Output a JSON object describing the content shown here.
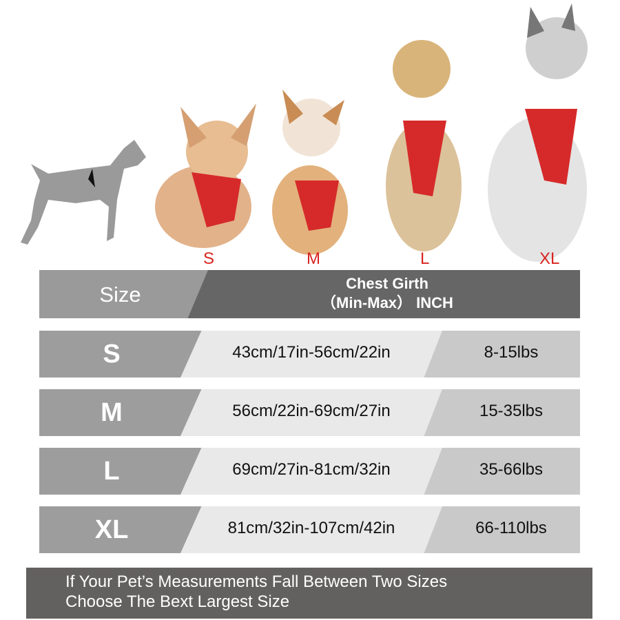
{
  "size_labels": [
    "S",
    "M",
    "L",
    "XL"
  ],
  "header": {
    "size": "Size",
    "girth_line1": "Chest Girth",
    "girth_line2": "（Min-Max） INCH"
  },
  "rows": [
    {
      "size": "S",
      "girth": "43cm/17in-56cm/22in",
      "weight": "8-15lbs"
    },
    {
      "size": "M",
      "girth": "56cm/22in-69cm/27in",
      "weight": "15-35lbs"
    },
    {
      "size": "L",
      "girth": "69cm/27in-81cm/32in",
      "weight": "35-66lbs"
    },
    {
      "size": "XL",
      "girth": "81cm/32in-107cm/42in",
      "weight": "66-110lbs"
    }
  ],
  "footer": {
    "line1": "If Your Pet’s Measurements Fall Between Two Sizes",
    "line2": "Choose The Bext Largest Size"
  },
  "colors": {
    "label_red": "#d8231f",
    "harness_red": "#d62a2a",
    "header_dark": "#666666",
    "footer": "#636160"
  }
}
